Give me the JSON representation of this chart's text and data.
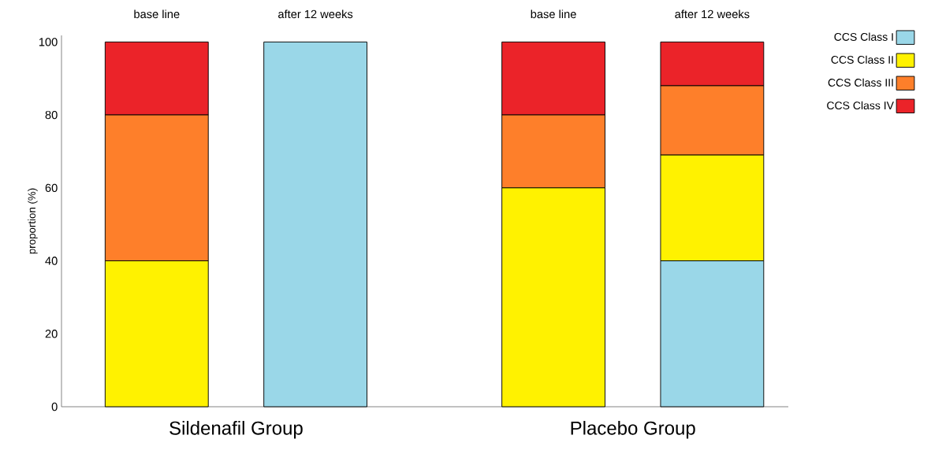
{
  "chart_data": {
    "type": "bar",
    "stacked": true,
    "ylabel": "proportion (%)",
    "categories": [
      "base line",
      "after 12  weeks",
      "base line",
      "after 12 weeks"
    ],
    "series": [
      {
        "name": "CCS Class I",
        "color": "#9ad7e8",
        "values": [
          0,
          100,
          0,
          40
        ]
      },
      {
        "name": "CCS Class II",
        "color": "#fff200",
        "values": [
          40,
          0,
          60,
          29
        ]
      },
      {
        "name": "CCS Class III",
        "color": "#fe7f2a",
        "values": [
          40,
          0,
          20,
          19
        ]
      },
      {
        "name": "CCS Class IV",
        "color": "#eb2329",
        "values": [
          20,
          0,
          20,
          12
        ]
      }
    ],
    "ylim": [
      0,
      100
    ],
    "yticks": [
      0,
      20,
      40,
      60,
      80,
      100
    ],
    "grid": false,
    "legend": "top right",
    "annotations": [
      "Sildenafil Group",
      "Placebo Group"
    ]
  }
}
